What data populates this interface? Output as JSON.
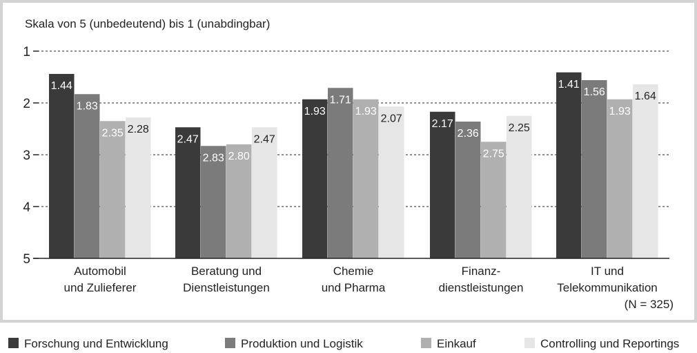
{
  "chart_data": {
    "type": "bar",
    "ylabel": "Skala von 5 (unbedeutend) bis 1 (unabdingbar)",
    "ylim": [
      5,
      1
    ],
    "yticks": [
      "1",
      "2",
      "3",
      "4",
      "5"
    ],
    "grid": true,
    "legend_position": "bottom",
    "categories": [
      [
        "Automobil",
        "und Zulieferer"
      ],
      [
        "Beratung und",
        "Dienstleistungen"
      ],
      [
        "Chemie",
        "und Pharma"
      ],
      [
        "Finanz-",
        "dienstleistungen"
      ],
      [
        "IT und",
        "Telekommunikation"
      ]
    ],
    "series": [
      {
        "name": "Forschung und Entwicklung",
        "color": "#3a3a3a",
        "label_color": "#ffffff",
        "values": [
          1.44,
          2.47,
          1.93,
          2.17,
          1.41
        ]
      },
      {
        "name": "Produktion und Logistik",
        "color": "#7b7b7b",
        "label_color": "#ffffff",
        "values": [
          1.83,
          2.83,
          1.71,
          2.36,
          1.56
        ]
      },
      {
        "name": "Einkauf",
        "color": "#b0b0b0",
        "label_color": "#ffffff",
        "values": [
          2.35,
          2.8,
          1.93,
          2.75,
          1.93
        ]
      },
      {
        "name": "Controlling und Reportings",
        "color": "#e6e6e6",
        "label_color": "#222222",
        "values": [
          2.28,
          2.47,
          2.07,
          2.25,
          1.64
        ]
      }
    ],
    "value_labels": [
      [
        "1.44",
        "2.47",
        "1.93",
        "2.17",
        "1.41"
      ],
      [
        "1.83",
        "2.83",
        "1.71",
        "2.36",
        "1.56"
      ],
      [
        "2.35",
        "2.80",
        "1.93",
        "2.75",
        "1.93"
      ],
      [
        "2.28",
        "2.47",
        "2.07",
        "2.25",
        "1.64"
      ]
    ],
    "annotation": "(N = 325)"
  }
}
